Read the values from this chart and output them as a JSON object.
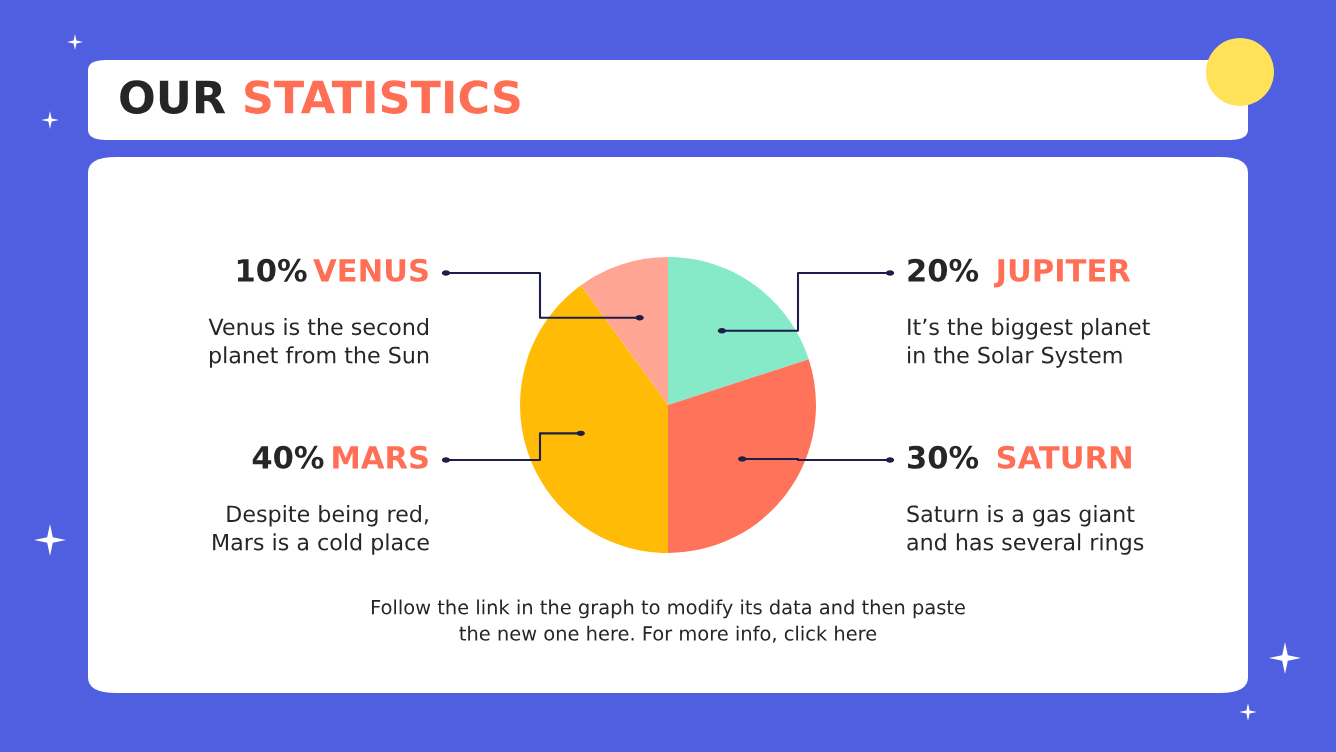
{
  "chart_data": {
    "type": "pie",
    "title": "OUR STATISTICS",
    "categories": [
      "JUPITER",
      "SATURN",
      "MARS",
      "VENUS"
    ],
    "values": [
      20,
      30,
      40,
      10
    ],
    "value_labels": [
      "20%",
      "30%",
      "40%",
      "10%"
    ],
    "colors": [
      "#86eac8",
      "#ff735a",
      "#ffbb05",
      "#ffa593"
    ],
    "legend": false,
    "annotations": [
      "It’s the biggest planet\nin the Solar System",
      "Saturn is a gas giant\nand has several rings",
      "Despite being red,\nMars is a cold place",
      "Venus is the second\nplanet from the Sun",
      "Follow the link in the graph to modify its data and then paste\nthe new one here. For more info, click here"
    ]
  }
}
